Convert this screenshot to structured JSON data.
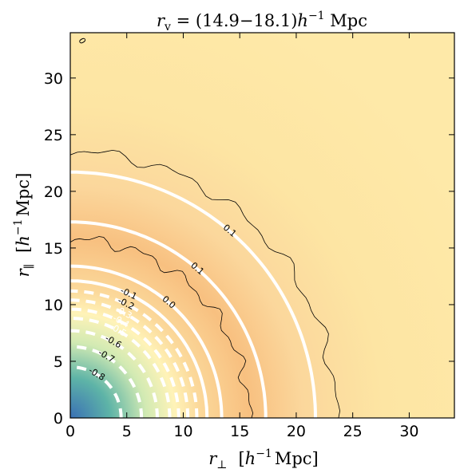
{
  "chart_data": {
    "type": "heatmap",
    "title": "r_v = (14.9–18.1) h^-1 Mpc",
    "title_parts": {
      "r": "r",
      "sub": "v",
      "range": " = (14.9−18.1)",
      "h": "h",
      "exp": "−1",
      "unit": " Mpc"
    },
    "xlabel_parts": {
      "r": "r",
      "sub": "⊥",
      "bracket_open": "[",
      "h": "h",
      "exp": "−1",
      "unit": "Mpc]"
    },
    "ylabel_parts": {
      "r": "r",
      "sub": "∥",
      "bracket_open": "[",
      "h": "h",
      "exp": "−1",
      "unit": "Mpc]"
    },
    "xlim": [
      0,
      34
    ],
    "ylim": [
      0,
      34
    ],
    "xticks": [
      "0",
      "5",
      "10",
      "15",
      "20",
      "25",
      "30"
    ],
    "yticks": [
      "0",
      "5",
      "10",
      "15",
      "20",
      "25",
      "30"
    ],
    "xtick_values": [
      0,
      5,
      10,
      15,
      20,
      25,
      30
    ],
    "ytick_values": [
      0,
      5,
      10,
      15,
      20,
      25,
      30
    ],
    "colormap": [
      "#3a70b5",
      "#5eb4a7",
      "#d2eab3",
      "#fff3b8",
      "#f8c080"
    ],
    "model_contours": [
      {
        "level": 0.1,
        "radius": 21.7,
        "style": "solid",
        "color": "#ffffff",
        "label": "0.1"
      },
      {
        "level": 0.1,
        "radius": 17.3,
        "style": "solid",
        "color": "#ffffff",
        "label": "0.1"
      },
      {
        "level": 0.0,
        "radius": 13.4,
        "style": "solid",
        "color": "#ffffff",
        "label": "0.0"
      },
      {
        "level": -0.1,
        "radius": 12.1,
        "style": "solid",
        "color": "#ffffff",
        "label": "-0.1"
      },
      {
        "level": -0.2,
        "radius": 11.2,
        "style": "dashed",
        "color": "#ffffff",
        "label": "-0.2"
      },
      {
        "level": -0.3,
        "radius": 10.4,
        "style": "dashed",
        "color": "#ffffff",
        "label": "-0.3"
      },
      {
        "level": -0.4,
        "radius": 9.6,
        "style": "dashed",
        "color": "#ffffff",
        "label": "-0.4"
      },
      {
        "level": -0.5,
        "radius": 8.8,
        "style": "dashed",
        "color": "#ffffff",
        "label": "-0.5"
      },
      {
        "level": -0.6,
        "radius": 7.7,
        "style": "dashed",
        "color": "#ffffff",
        "label": "-0.6"
      },
      {
        "level": -0.7,
        "radius": 6.3,
        "style": "dashed",
        "color": "#ffffff",
        "label": "-0.7"
      },
      {
        "level": -0.8,
        "radius": 4.5,
        "style": "dashed",
        "color": "#ffffff",
        "label": "-0.8"
      }
    ],
    "data_contours": [
      {
        "level": 0.1,
        "radius": 23.5,
        "color": "#000000"
      },
      {
        "level": 0.0,
        "radius": 15.8,
        "color": "#000000"
      }
    ],
    "corner_label": "0"
  }
}
